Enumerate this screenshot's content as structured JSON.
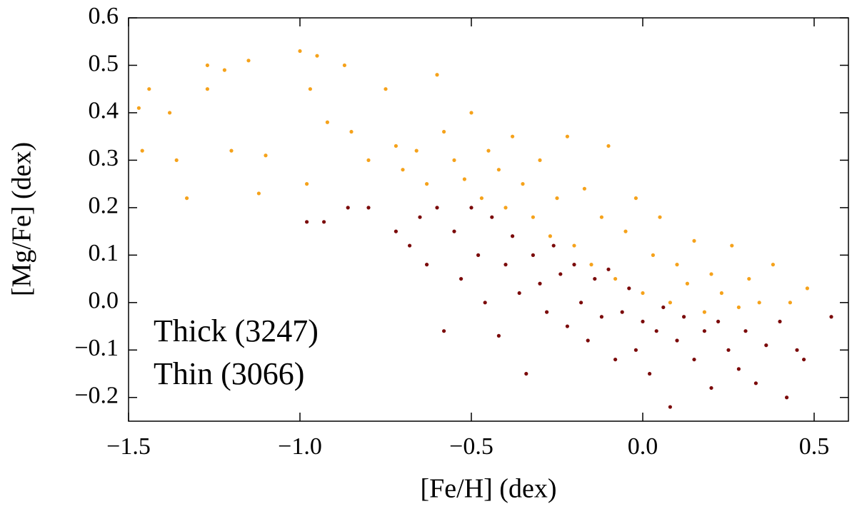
{
  "chart_data": {
    "type": "scatter",
    "xlabel": "[Fe/H] (dex)",
    "ylabel": "[Mg/Fe] (dex)",
    "xlim": [
      -1.5,
      0.6
    ],
    "ylim": [
      -0.25,
      0.6
    ],
    "xticks": [
      {
        "value": -1.5,
        "label": "−1.5"
      },
      {
        "value": -1.0,
        "label": "−1.0"
      },
      {
        "value": -0.5,
        "label": "−0.5"
      },
      {
        "value": 0.0,
        "label": "0.0"
      },
      0.5
    ],
    "yticks": [
      {
        "value": -0.2,
        "label": "−0.2"
      },
      {
        "value": -0.1,
        "label": "−0.1"
      },
      {
        "value": 0.0,
        "label": "0.0"
      },
      0.1,
      0.2,
      0.3,
      0.4,
      0.5,
      0.6
    ],
    "legend": "lower left",
    "series": [
      {
        "name": "Thick (3247)",
        "color": "#f5a21b",
        "x": [
          -1.47,
          -1.44,
          -1.46,
          -1.38,
          -1.36,
          -1.33,
          -1.27,
          -1.27,
          -1.22,
          -1.2,
          -1.15,
          -1.12,
          -1.1,
          -1.0,
          -0.95,
          -0.97,
          -0.98,
          -0.92,
          -0.87,
          -0.85,
          -0.8,
          -0.75,
          -0.72,
          -0.7,
          -0.66,
          -0.63,
          -0.6,
          -0.58,
          -0.55,
          -0.52,
          -0.5,
          -0.47,
          -0.45,
          -0.42,
          -0.4,
          -0.38,
          -0.35,
          -0.32,
          -0.3,
          -0.27,
          -0.25,
          -0.22,
          -0.2,
          -0.17,
          -0.15,
          -0.12,
          -0.1,
          -0.08,
          -0.05,
          -0.02,
          0.0,
          0.03,
          0.05,
          0.08,
          0.1,
          0.13,
          0.15,
          0.18,
          0.2,
          0.23,
          0.26,
          0.28,
          0.31,
          0.34,
          0.38,
          0.43,
          0.48
        ],
        "y": [
          0.41,
          0.45,
          0.32,
          0.4,
          0.3,
          0.22,
          0.5,
          0.45,
          0.49,
          0.32,
          0.51,
          0.23,
          0.31,
          0.53,
          0.52,
          0.45,
          0.25,
          0.38,
          0.5,
          0.36,
          0.3,
          0.45,
          0.33,
          0.28,
          0.32,
          0.25,
          0.48,
          0.36,
          0.3,
          0.26,
          0.4,
          0.22,
          0.32,
          0.28,
          0.2,
          0.35,
          0.25,
          0.18,
          0.3,
          0.14,
          0.22,
          0.35,
          0.12,
          0.24,
          0.08,
          0.18,
          0.33,
          0.05,
          0.15,
          0.22,
          0.02,
          0.1,
          0.18,
          0.0,
          0.08,
          0.04,
          0.13,
          -0.02,
          0.06,
          0.02,
          0.12,
          -0.01,
          0.05,
          0.0,
          0.08,
          0.0,
          0.03
        ]
      },
      {
        "name": "Thin (3066)",
        "color": "#7b0a0a",
        "x": [
          -0.98,
          -0.93,
          -0.86,
          -0.8,
          -0.72,
          -0.68,
          -0.65,
          -0.63,
          -0.6,
          -0.58,
          -0.55,
          -0.53,
          -0.5,
          -0.48,
          -0.46,
          -0.44,
          -0.42,
          -0.4,
          -0.38,
          -0.36,
          -0.34,
          -0.32,
          -0.3,
          -0.28,
          -0.26,
          -0.24,
          -0.22,
          -0.2,
          -0.18,
          -0.16,
          -0.14,
          -0.12,
          -0.1,
          -0.08,
          -0.06,
          -0.04,
          -0.02,
          0.0,
          0.02,
          0.04,
          0.06,
          0.08,
          0.1,
          0.12,
          0.15,
          0.18,
          0.2,
          0.22,
          0.25,
          0.28,
          0.3,
          0.33,
          0.36,
          0.4,
          0.42,
          0.45,
          0.47,
          0.55
        ],
        "y": [
          0.17,
          0.17,
          0.2,
          0.2,
          0.15,
          0.12,
          0.18,
          0.08,
          0.2,
          -0.06,
          0.15,
          0.05,
          0.2,
          0.1,
          0.0,
          0.18,
          -0.07,
          0.08,
          0.14,
          0.02,
          -0.15,
          0.1,
          0.04,
          -0.02,
          0.12,
          0.06,
          -0.05,
          0.08,
          0.0,
          -0.08,
          0.05,
          -0.03,
          0.07,
          -0.12,
          -0.02,
          0.03,
          -0.1,
          -0.04,
          -0.15,
          -0.06,
          -0.01,
          -0.22,
          -0.08,
          -0.03,
          -0.12,
          -0.06,
          -0.18,
          -0.04,
          -0.1,
          -0.14,
          -0.06,
          -0.17,
          -0.09,
          -0.04,
          -0.2,
          -0.1,
          -0.12,
          -0.03
        ]
      }
    ]
  }
}
